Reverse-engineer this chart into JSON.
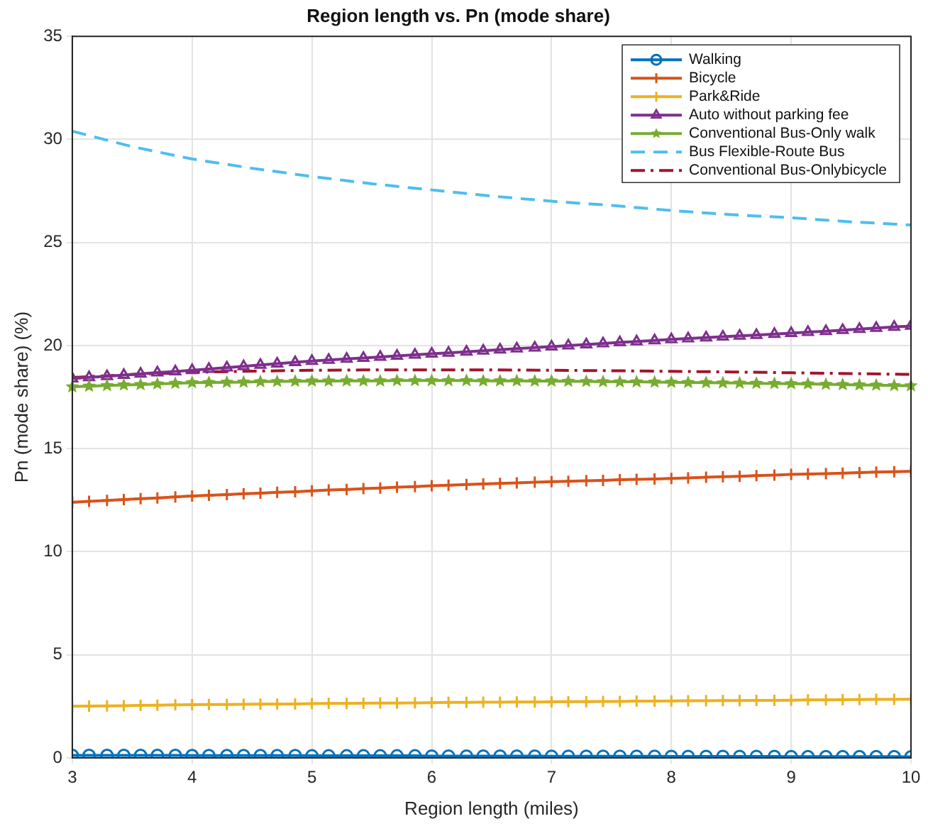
{
  "chart_data": {
    "type": "line",
    "title": "Region length vs. Pn (mode share)",
    "xlabel": "Region length (miles)",
    "ylabel": "Pn (mode share) (%)",
    "x": [
      3,
      3.14,
      3.29,
      3.43,
      3.57,
      3.71,
      3.86,
      4,
      4.14,
      4.29,
      4.43,
      4.57,
      4.71,
      4.86,
      5,
      5.14,
      5.29,
      5.43,
      5.57,
      5.71,
      5.86,
      6,
      6.14,
      6.29,
      6.43,
      6.57,
      6.71,
      6.86,
      7,
      7.14,
      7.29,
      7.43,
      7.57,
      7.71,
      7.86,
      8,
      8.14,
      8.29,
      8.43,
      8.57,
      8.71,
      8.86,
      9,
      9.14,
      9.29,
      9.43,
      9.57,
      9.71,
      9.86,
      10
    ],
    "xlim": [
      3,
      10
    ],
    "xticks": [
      3,
      4,
      5,
      6,
      7,
      8,
      9,
      10
    ],
    "ylim": [
      0,
      35
    ],
    "yticks": [
      0,
      5,
      10,
      15,
      20,
      25,
      30,
      35
    ],
    "grid": true,
    "legend": "top right",
    "series": [
      {
        "name": "Walking",
        "color": "#0072bd",
        "marker": "circle",
        "line_style": "solid",
        "values": [
          0.12,
          0.12,
          0.12,
          0.12,
          0.12,
          0.12,
          0.12,
          0.11,
          0.11,
          0.11,
          0.11,
          0.11,
          0.11,
          0.11,
          0.1,
          0.1,
          0.1,
          0.1,
          0.1,
          0.1,
          0.1,
          0.09,
          0.09,
          0.09,
          0.09,
          0.09,
          0.09,
          0.09,
          0.08,
          0.08,
          0.08,
          0.08,
          0.08,
          0.08,
          0.08,
          0.07,
          0.07,
          0.07,
          0.07,
          0.07,
          0.07,
          0.07,
          0.06,
          0.06,
          0.06,
          0.06,
          0.06,
          0.06,
          0.06,
          0.05
        ]
      },
      {
        "name": "Bicycle",
        "color": "#d95319",
        "marker": "cross",
        "line_style": "solid",
        "values": [
          12.4,
          12.44,
          12.49,
          12.53,
          12.57,
          12.61,
          12.66,
          12.7,
          12.74,
          12.77,
          12.81,
          12.84,
          12.88,
          12.91,
          12.95,
          12.99,
          13.02,
          13.06,
          13.09,
          13.13,
          13.16,
          13.2,
          13.23,
          13.26,
          13.29,
          13.31,
          13.34,
          13.37,
          13.4,
          13.42,
          13.44,
          13.46,
          13.49,
          13.51,
          13.53,
          13.55,
          13.58,
          13.61,
          13.64,
          13.66,
          13.69,
          13.72,
          13.75,
          13.77,
          13.79,
          13.81,
          13.84,
          13.86,
          13.88,
          13.9
        ]
      },
      {
        "name": "Park&Ride",
        "color": "#edb120",
        "marker": "cross",
        "line_style": "solid",
        "values": [
          2.5,
          2.51,
          2.52,
          2.53,
          2.55,
          2.56,
          2.57,
          2.58,
          2.59,
          2.59,
          2.6,
          2.61,
          2.61,
          2.62,
          2.63,
          2.64,
          2.64,
          2.65,
          2.66,
          2.66,
          2.67,
          2.68,
          2.69,
          2.69,
          2.7,
          2.7,
          2.71,
          2.71,
          2.72,
          2.73,
          2.73,
          2.74,
          2.74,
          2.75,
          2.75,
          2.76,
          2.77,
          2.77,
          2.78,
          2.78,
          2.79,
          2.79,
          2.8,
          2.81,
          2.81,
          2.82,
          2.83,
          2.84,
          2.84,
          2.85
        ]
      },
      {
        "name": "Auto without parking fee",
        "color": "#7e2f8e",
        "marker": "triangle",
        "line_style": "solid",
        "values": [
          18.4,
          18.46,
          18.51,
          18.57,
          18.63,
          18.69,
          18.74,
          18.8,
          18.86,
          18.93,
          18.99,
          19.06,
          19.12,
          19.19,
          19.25,
          19.3,
          19.35,
          19.4,
          19.45,
          19.5,
          19.55,
          19.6,
          19.65,
          19.7,
          19.75,
          19.8,
          19.85,
          19.9,
          19.95,
          20,
          20.05,
          20.1,
          20.15,
          20.2,
          20.25,
          20.3,
          20.34,
          20.39,
          20.43,
          20.47,
          20.51,
          20.56,
          20.6,
          20.65,
          20.7,
          20.75,
          20.8,
          20.85,
          20.9,
          20.95
        ]
      },
      {
        "name": "Conventional Bus-Only walk",
        "color": "#77ac30",
        "marker": "star",
        "line_style": "solid",
        "values": [
          18,
          18.03,
          18.06,
          18.09,
          18.11,
          18.14,
          18.17,
          18.2,
          18.21,
          18.22,
          18.23,
          18.25,
          18.26,
          18.27,
          18.28,
          18.28,
          18.29,
          18.29,
          18.29,
          18.3,
          18.3,
          18.3,
          18.3,
          18.3,
          18.29,
          18.29,
          18.29,
          18.28,
          18.28,
          18.27,
          18.26,
          18.25,
          18.24,
          18.24,
          18.23,
          18.22,
          18.21,
          18.2,
          18.19,
          18.18,
          18.17,
          18.16,
          18.15,
          18.14,
          18.12,
          18.11,
          18.09,
          18.08,
          18.06,
          18.05
        ]
      },
      {
        "name": "Bus Flexible-Route Bus",
        "color": "#4dbeee",
        "marker": "none",
        "line_style": "dashed",
        "x": [
          3,
          3.5,
          4,
          4.5,
          5,
          5.5,
          6,
          6.5,
          7,
          7.5,
          8,
          8.5,
          9,
          9.5,
          10
        ],
        "values": [
          30.4,
          29.65,
          29.05,
          28.6,
          28.2,
          27.85,
          27.55,
          27.25,
          27,
          26.8,
          26.55,
          26.35,
          26.2,
          26,
          25.85
        ]
      },
      {
        "name": "Conventional Bus-Onlybicycle",
        "color": "#a2142f",
        "marker": "none",
        "line_style": "dashdot",
        "x": [
          3,
          3.5,
          4,
          4.5,
          5,
          5.5,
          6,
          6.5,
          7,
          7.5,
          8,
          8.5,
          9,
          9.5,
          10
        ],
        "values": [
          18.45,
          18.6,
          18.7,
          18.76,
          18.8,
          18.82,
          18.82,
          18.82,
          18.8,
          18.78,
          18.75,
          18.72,
          18.68,
          18.64,
          18.6
        ]
      }
    ]
  }
}
